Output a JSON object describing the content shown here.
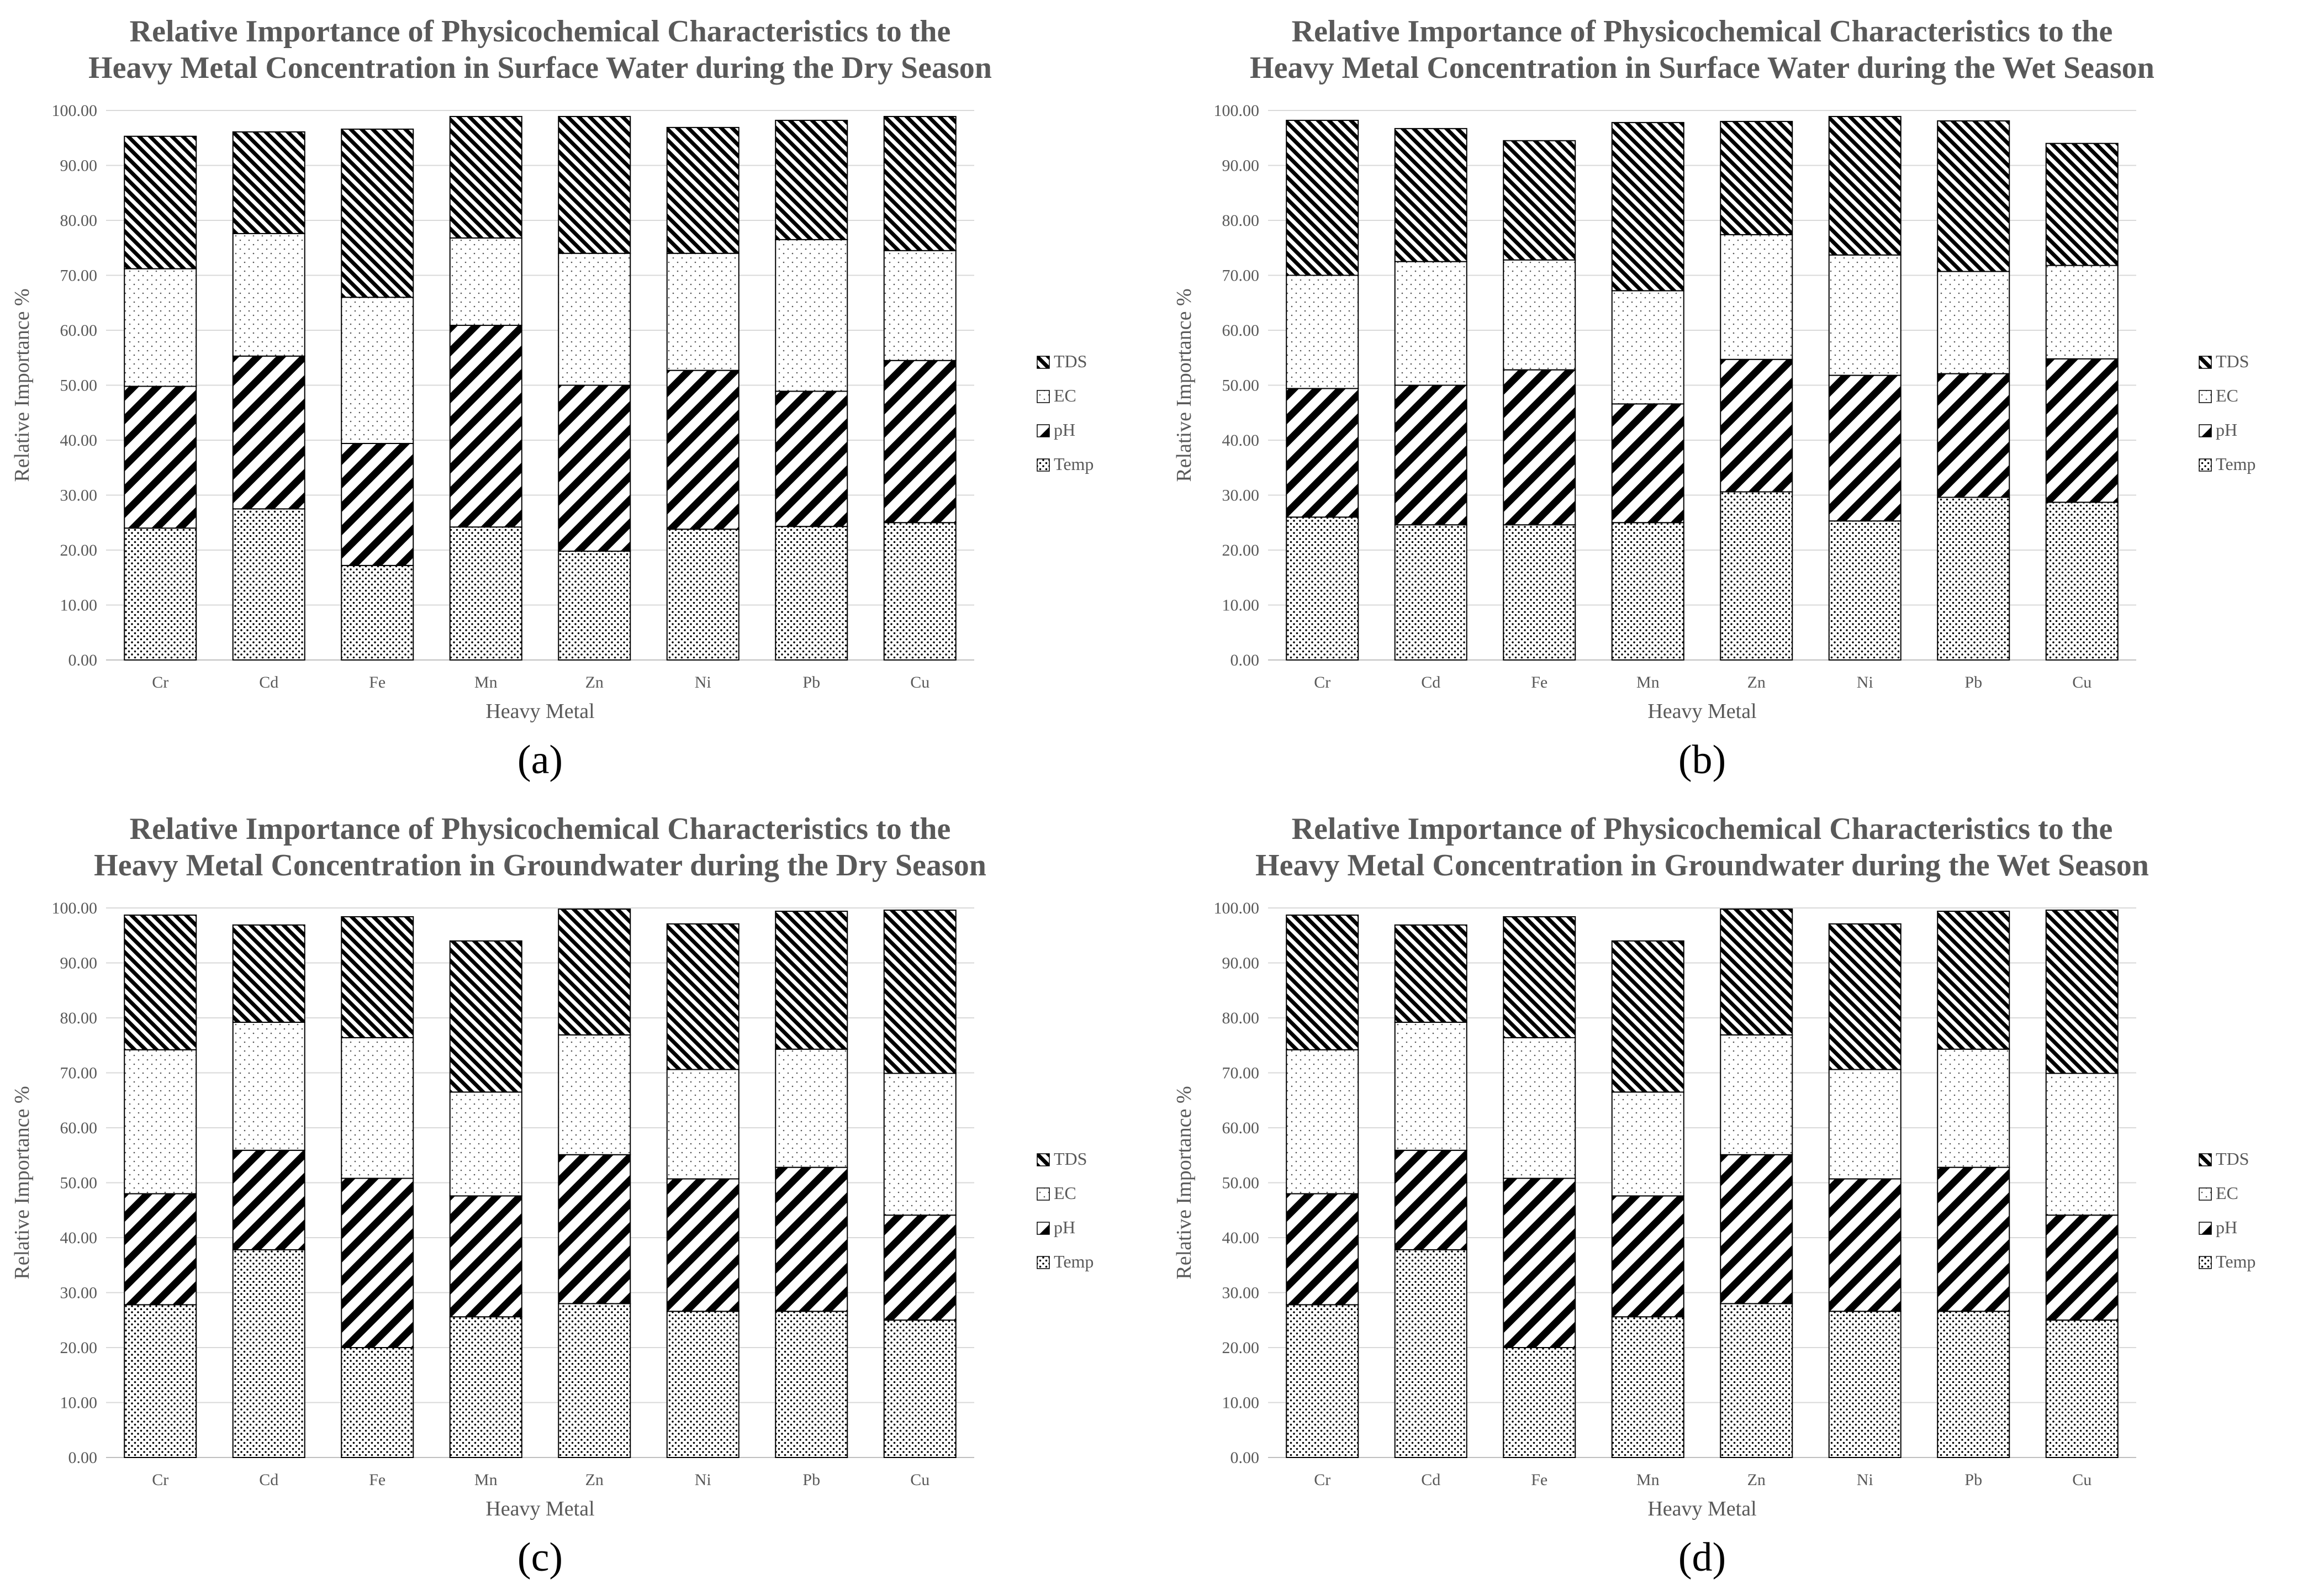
{
  "figure": {
    "panel_labels": [
      "(a)",
      "(b)",
      "(c)",
      "(d)"
    ]
  },
  "palette": {
    "bar_outline": "#000000",
    "text": "#595959",
    "grid": "#d9d9d9",
    "axis": "#bfbfbf"
  },
  "series_patterns": {
    "Temp": "dots",
    "pH": "diagonal-down-wide",
    "EC": "sparse-dots",
    "TDS": "diagonal-up-dense"
  },
  "chart_data": [
    {
      "type": "bar",
      "stacked": true,
      "title_lines": [
        "Relative Importance of Physicochemical Characteristics to the",
        "Heavy Metal Concentration in Surface Water during the Dry Season"
      ],
      "xlabel": "Heavy Metal",
      "ylabel": "Relative Importance %",
      "ylim": [
        0,
        100
      ],
      "yticks": [
        "0.00",
        "10.00",
        "20.00",
        "30.00",
        "40.00",
        "50.00",
        "60.00",
        "70.00",
        "80.00",
        "90.00",
        "100.00"
      ],
      "categories": [
        "Cr",
        "Cd",
        "Fe",
        "Mn",
        "Zn",
        "Ni",
        "Pb",
        "Cu"
      ],
      "legend_order": [
        "TDS",
        "EC",
        "pH",
        "Temp"
      ],
      "legend_position": "right",
      "grid": true,
      "series": [
        {
          "name": "Temp",
          "values": [
            24.0,
            27.5,
            17.2,
            24.2,
            19.8,
            23.8,
            24.3,
            25.0
          ]
        },
        {
          "name": "pH",
          "values": [
            25.8,
            27.8,
            22.2,
            36.7,
            30.2,
            28.9,
            24.6,
            29.5
          ]
        },
        {
          "name": "EC",
          "values": [
            21.4,
            22.3,
            26.6,
            15.9,
            24.0,
            21.3,
            27.6,
            20.0
          ]
        },
        {
          "name": "TDS",
          "values": [
            24.1,
            18.5,
            30.6,
            22.1,
            24.9,
            22.9,
            21.7,
            24.4
          ]
        }
      ]
    },
    {
      "type": "bar",
      "stacked": true,
      "title_lines": [
        "Relative Importance of Physicochemical Characteristics to the",
        "Heavy Metal Concentration in Surface Water during the Wet Season"
      ],
      "xlabel": "Heavy Metal",
      "ylabel": "Relative Importance %",
      "ylim": [
        0,
        100
      ],
      "yticks": [
        "0.00",
        "10.00",
        "20.00",
        "30.00",
        "40.00",
        "50.00",
        "60.00",
        "70.00",
        "80.00",
        "90.00",
        "100.00"
      ],
      "categories": [
        "Cr",
        "Cd",
        "Fe",
        "Mn",
        "Zn",
        "Ni",
        "Pb",
        "Cu"
      ],
      "legend_order": [
        "TDS",
        "EC",
        "pH",
        "Temp"
      ],
      "legend_position": "right",
      "grid": true,
      "series": [
        {
          "name": "Temp",
          "values": [
            26.0,
            24.6,
            24.6,
            25.0,
            30.6,
            25.3,
            29.6,
            28.7
          ]
        },
        {
          "name": "pH",
          "values": [
            23.4,
            25.4,
            28.2,
            21.6,
            24.1,
            26.5,
            22.5,
            26.1
          ]
        },
        {
          "name": "EC",
          "values": [
            20.6,
            22.5,
            20.0,
            20.6,
            22.7,
            21.9,
            18.6,
            17.0
          ]
        },
        {
          "name": "TDS",
          "values": [
            28.2,
            24.2,
            21.7,
            30.6,
            20.6,
            25.2,
            27.4,
            22.2
          ]
        }
      ]
    },
    {
      "type": "bar",
      "stacked": true,
      "title_lines": [
        "Relative Importance of Physicochemical Characteristics to the",
        "Heavy Metal Concentration in Groundwater during the Dry Season"
      ],
      "xlabel": "Heavy Metal",
      "ylabel": "Relative Importance %",
      "ylim": [
        0,
        100
      ],
      "yticks": [
        "0.00",
        "10.00",
        "20.00",
        "30.00",
        "40.00",
        "50.00",
        "60.00",
        "70.00",
        "80.00",
        "90.00",
        "100.00"
      ],
      "categories": [
        "Cr",
        "Cd",
        "Fe",
        "Mn",
        "Zn",
        "Ni",
        "Pb",
        "Cu"
      ],
      "legend_order": [
        "TDS",
        "EC",
        "pH",
        "Temp"
      ],
      "legend_position": "right",
      "grid": true,
      "series": [
        {
          "name": "Temp",
          "values": [
            27.8,
            37.8,
            20.0,
            25.6,
            28.0,
            26.6,
            26.6,
            25.0
          ]
        },
        {
          "name": "pH",
          "values": [
            20.2,
            18.1,
            30.8,
            22.0,
            27.1,
            24.1,
            26.2,
            19.1
          ]
        },
        {
          "name": "EC",
          "values": [
            26.2,
            23.3,
            25.6,
            18.9,
            21.8,
            19.9,
            21.5,
            25.8
          ]
        },
        {
          "name": "TDS",
          "values": [
            24.5,
            17.7,
            22.0,
            27.5,
            22.9,
            26.5,
            25.1,
            29.7
          ]
        }
      ]
    },
    {
      "type": "bar",
      "stacked": true,
      "title_lines": [
        "Relative Importance of Physicochemical Characteristics to the",
        "Heavy Metal Concentration in Groundwater during the Wet Season"
      ],
      "xlabel": "Heavy Metal",
      "ylabel": "Relative Importance %",
      "ylim": [
        0,
        100
      ],
      "yticks": [
        "0.00",
        "10.00",
        "20.00",
        "30.00",
        "40.00",
        "50.00",
        "60.00",
        "70.00",
        "80.00",
        "90.00",
        "100.00"
      ],
      "categories": [
        "Cr",
        "Cd",
        "Fe",
        "Mn",
        "Zn",
        "Ni",
        "Pb",
        "Cu"
      ],
      "legend_order": [
        "TDS",
        "EC",
        "pH",
        "Temp"
      ],
      "legend_position": "right",
      "grid": true,
      "series": [
        {
          "name": "Temp",
          "values": [
            27.8,
            37.8,
            20.0,
            25.6,
            28.0,
            26.6,
            26.6,
            25.0
          ]
        },
        {
          "name": "pH",
          "values": [
            20.2,
            18.1,
            30.8,
            22.0,
            27.1,
            24.1,
            26.2,
            19.1
          ]
        },
        {
          "name": "EC",
          "values": [
            26.2,
            23.3,
            25.6,
            18.9,
            21.8,
            19.9,
            21.5,
            25.8
          ]
        },
        {
          "name": "TDS",
          "values": [
            24.5,
            17.7,
            22.0,
            27.5,
            22.9,
            26.5,
            25.1,
            29.7
          ]
        }
      ]
    }
  ]
}
